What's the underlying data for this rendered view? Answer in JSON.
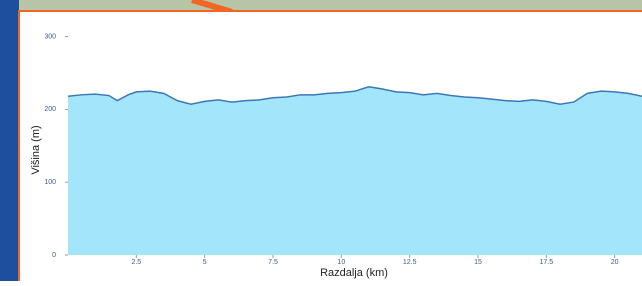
{
  "chart_data": {
    "type": "area",
    "x_label": "Razdalja (km)",
    "y_label": "Višina (m)",
    "x": [
      0,
      0.5,
      1,
      1.5,
      1.8,
      2.2,
      2.5,
      3,
      3.5,
      4,
      4.5,
      5,
      5.5,
      6,
      6.5,
      7,
      7.5,
      8,
      8.5,
      9,
      9.5,
      10,
      10.5,
      11,
      11.5,
      12,
      12.5,
      13,
      13.5,
      14,
      14.5,
      15,
      15.5,
      16,
      16.5,
      17,
      17.5,
      18,
      18.5,
      19,
      19.5,
      20,
      20.5,
      21
    ],
    "values": [
      218,
      220,
      221,
      219,
      212,
      220,
      224,
      225,
      222,
      212,
      207,
      211,
      213,
      210,
      212,
      213,
      216,
      217,
      220,
      220,
      222,
      223,
      225,
      231,
      228,
      224,
      223,
      220,
      222,
      219,
      217,
      216,
      214,
      212,
      211,
      213,
      211,
      207,
      210,
      222,
      225,
      224,
      222,
      218
    ],
    "fill_color": "#a3e6fb",
    "line_color": "#3b78b8",
    "xlim": [
      0,
      21
    ],
    "xticks": [
      2.5,
      5,
      7.5,
      10,
      12.5,
      15,
      17.5,
      20
    ],
    "ylim": [
      0,
      320
    ],
    "yticks": [
      0,
      100,
      200,
      300
    ]
  }
}
